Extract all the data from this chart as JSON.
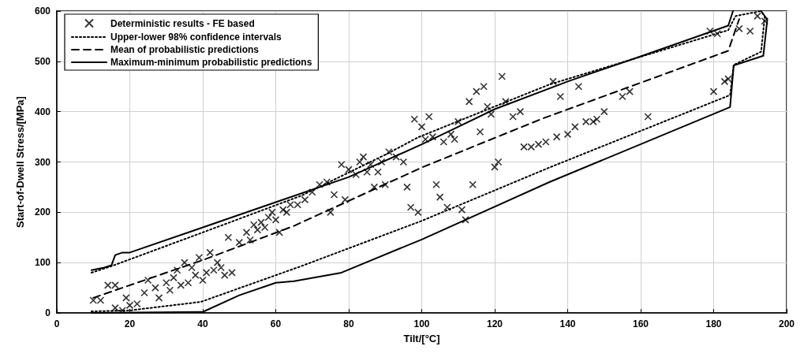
{
  "chart_data": {
    "type": "scatter",
    "xlabel": "Tilt/[°C]",
    "ylabel": "Start-of-Dwell Stress/[MPa]",
    "xlim": [
      0,
      200
    ],
    "xticks": [
      0,
      20,
      40,
      60,
      80,
      100,
      120,
      140,
      160,
      180,
      200
    ],
    "ylim": [
      0,
      600
    ],
    "yticks": [
      0,
      100,
      200,
      300,
      400,
      500,
      600
    ],
    "grid": true,
    "legend": "top left",
    "series": [
      {
        "name": "Deterministic results - FE based",
        "marker": "cross",
        "color": "#000000",
        "x": [
          10,
          12,
          14,
          16,
          16,
          18,
          19,
          20,
          22,
          24,
          25,
          27,
          28,
          30,
          31,
          32,
          33,
          34,
          35,
          36,
          37,
          38,
          39,
          40,
          41,
          42,
          43,
          44,
          45,
          46,
          47,
          48,
          50,
          52,
          53,
          54,
          55,
          56,
          57,
          58,
          59,
          60,
          61,
          62,
          63,
          64,
          66,
          68,
          70,
          72,
          74,
          75,
          76,
          78,
          79,
          80,
          82,
          83,
          84,
          85,
          86,
          87,
          88,
          89,
          90,
          91,
          93,
          95,
          96,
          97,
          98,
          99,
          100,
          101,
          102,
          103,
          104,
          105,
          106,
          107,
          108,
          109,
          110,
          111,
          112,
          113,
          114,
          115,
          116,
          117,
          118,
          119,
          120,
          121,
          122,
          123,
          125,
          127,
          128,
          130,
          132,
          134,
          136,
          137,
          138,
          140,
          142,
          143,
          145,
          147,
          148,
          150,
          155,
          157,
          162,
          179,
          180,
          181,
          183,
          184,
          187,
          190,
          192,
          194
        ],
        "values": [
          25,
          25,
          55,
          55,
          10,
          5,
          30,
          15,
          18,
          40,
          65,
          50,
          30,
          60,
          45,
          70,
          85,
          55,
          100,
          60,
          90,
          75,
          110,
          65,
          80,
          120,
          85,
          100,
          90,
          75,
          150,
          80,
          140,
          160,
          145,
          175,
          165,
          180,
          170,
          190,
          200,
          185,
          160,
          205,
          200,
          215,
          215,
          225,
          240,
          255,
          260,
          200,
          235,
          295,
          225,
          285,
          275,
          300,
          310,
          280,
          295,
          250,
          280,
          300,
          255,
          320,
          310,
          300,
          250,
          210,
          385,
          200,
          370,
          345,
          390,
          350,
          255,
          230,
          340,
          210,
          355,
          345,
          380,
          205,
          185,
          420,
          255,
          440,
          360,
          450,
          410,
          395,
          290,
          300,
          470,
          420,
          390,
          400,
          330,
          330,
          335,
          340,
          460,
          350,
          430,
          355,
          370,
          450,
          380,
          380,
          385,
          400,
          430,
          440,
          390,
          560,
          440,
          555,
          460,
          465,
          565,
          560,
          590,
          580
        ]
      },
      {
        "name": "Upper-lower 98% confidence intervals",
        "type": "line",
        "line_style": "dotted",
        "color": "#000000",
        "x": [
          9.5,
          15,
          40,
          67,
          91,
          99,
          135,
          184,
          186,
          193
        ],
        "values": [
          80,
          93,
          160,
          233,
          318,
          349,
          454,
          562,
          590,
          600
        ]
      },
      {
        "type": "line",
        "line_style": "dotted",
        "color": "#000000",
        "x": [
          9.5,
          20,
          39.5,
          67,
          100,
          135,
          184.5,
          185.5,
          193,
          194,
          193
        ],
        "values": [
          3,
          5,
          22,
          93,
          183,
          289,
          433,
          493,
          519,
          589,
          600
        ]
      },
      {
        "name": "Mean of probabilistic predictions",
        "type": "line",
        "line_style": "dashed",
        "color": "#000000",
        "x": [
          10,
          40,
          65,
          100,
          133,
          184,
          187
        ],
        "values": [
          30,
          105,
          173,
          289,
          386,
          521,
          584
        ]
      },
      {
        "name": "Maximum-minimum probabilistic predictions",
        "type": "line",
        "line_style": "solid",
        "color": "#000000",
        "x": [
          9.5,
          13,
          15,
          16,
          18,
          20,
          40,
          60,
          80,
          100,
          110,
          120,
          140,
          160,
          184,
          185.3
        ],
        "values": [
          85,
          90,
          95,
          115,
          120,
          120,
          170,
          220,
          270,
          335,
          370,
          405,
          460,
          510,
          571,
          600
        ]
      },
      {
        "type": "line",
        "line_style": "solid",
        "color": "#000000",
        "x": [
          9.5,
          40,
          50,
          60,
          65,
          78,
          100,
          135,
          184.5,
          185.5,
          193.6,
          194.7,
          193
        ],
        "values": [
          0,
          2,
          35,
          60,
          63,
          80,
          146,
          260,
          409,
          492,
          511,
          583,
          600
        ]
      }
    ]
  }
}
